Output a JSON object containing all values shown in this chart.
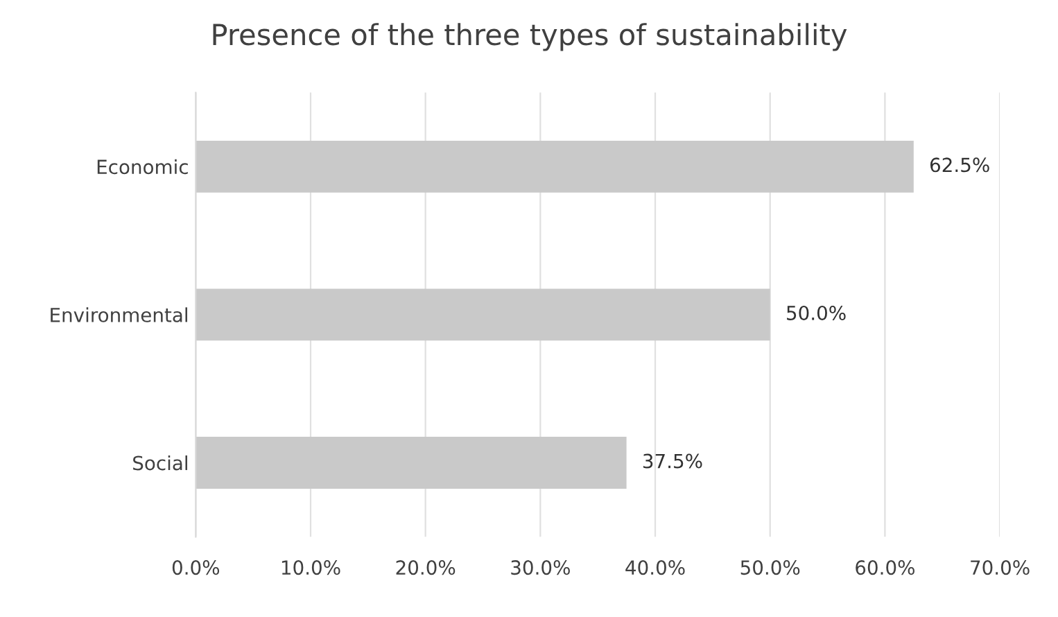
{
  "chart_data": {
    "type": "bar",
    "orientation": "horizontal",
    "title": "Presence of the three types of sustainability",
    "categories": [
      "Economic",
      "Environmental",
      "Social"
    ],
    "values": [
      62.5,
      50.0,
      37.5
    ],
    "value_labels": [
      "62.5%",
      "50.0%",
      "37.5%"
    ],
    "color": "#c9c9c9",
    "xlim": [
      0,
      70
    ],
    "xticks": [
      {
        "value": 0,
        "label": "0.0%"
      },
      {
        "value": 10,
        "label": "10.0%"
      },
      {
        "value": 20,
        "label": "20.0%"
      },
      {
        "value": 30,
        "label": "30.0%"
      },
      {
        "value": 40,
        "label": "40.0%"
      },
      {
        "value": 50,
        "label": "50.0%"
      },
      {
        "value": 60,
        "label": "60.0%"
      },
      {
        "value": 70,
        "label": "70.0%"
      }
    ],
    "grid": "x",
    "legend": false
  }
}
